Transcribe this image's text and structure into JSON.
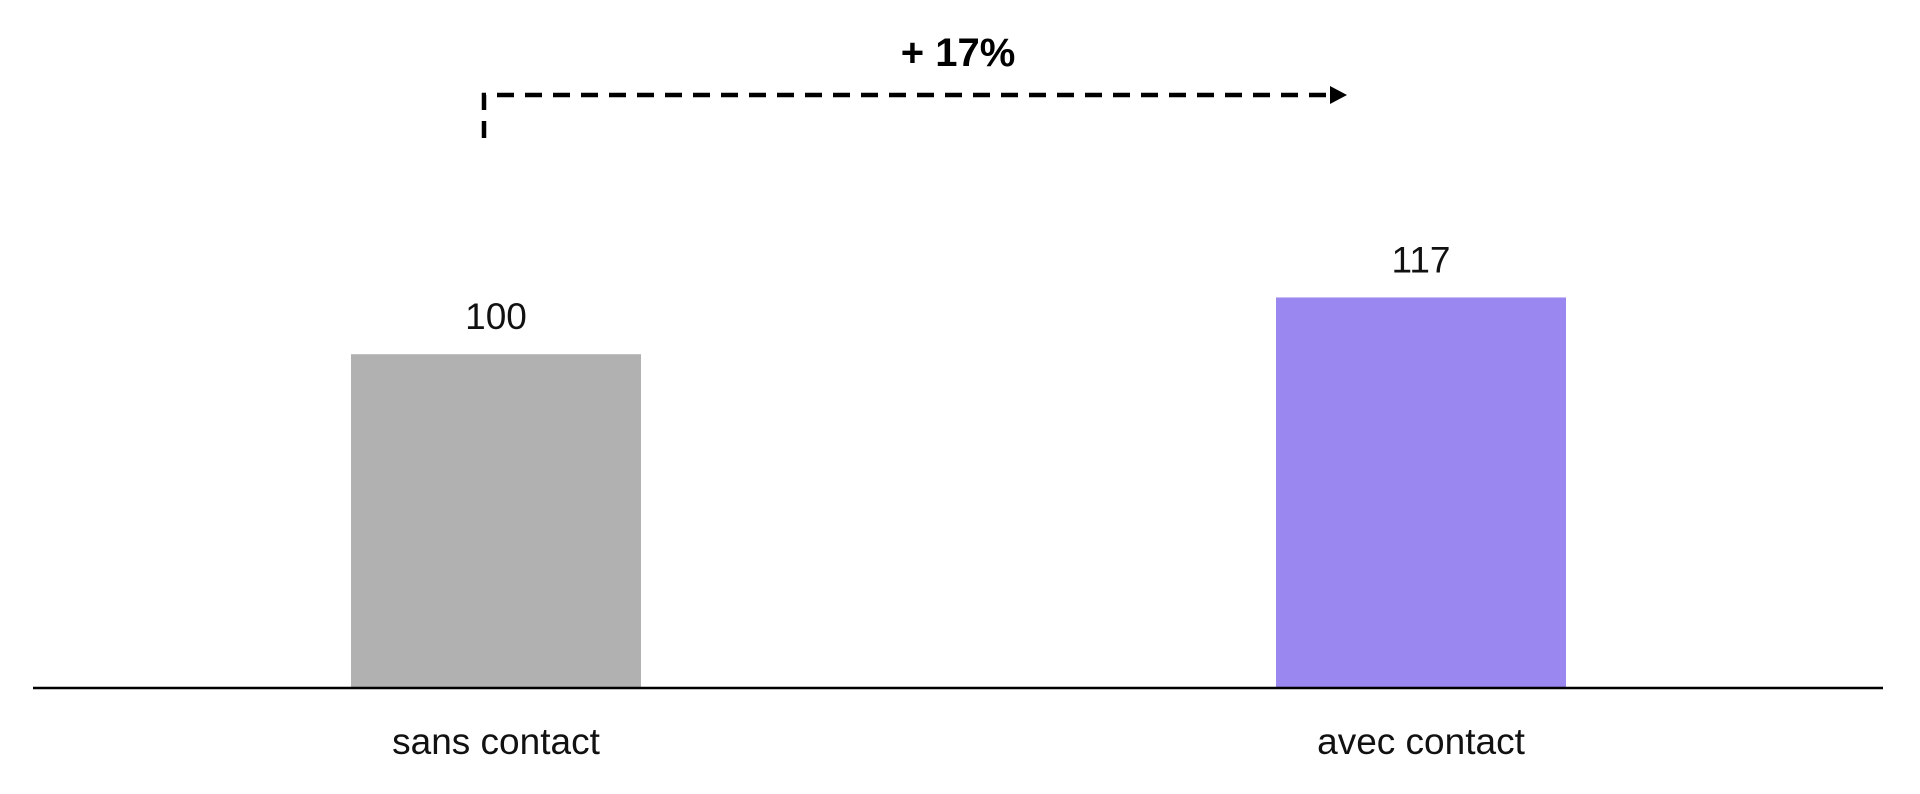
{
  "chart_data": {
    "type": "bar",
    "categories": [
      "sans contact",
      "avec contact"
    ],
    "values": [
      100,
      117
    ],
    "value_labels": [
      "100",
      "117"
    ],
    "bar_colors": [
      "#b1b1b1",
      "#9b87f0"
    ],
    "ylim": [
      0,
      145
    ],
    "grid": false,
    "title": "",
    "xlabel": "",
    "ylabel": "",
    "annotation": {
      "text": "+ 17%",
      "style": "dashed-arrow",
      "from_category": "sans contact",
      "to_category": "avec contact"
    }
  },
  "colors": {
    "axis": "#000000",
    "text": "#111111",
    "background": "#ffffff"
  }
}
